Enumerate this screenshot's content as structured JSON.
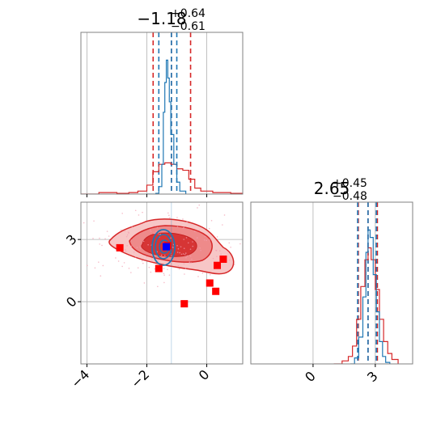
{
  "chart_data": [
    {
      "type": "line",
      "panel": "marginal-x",
      "title_main": "−1.18",
      "title_sup": "+0.64",
      "title_sub": "−0.61",
      "xlim": [
        -4.2,
        1.2
      ],
      "colors": {
        "narrow": "#1f77b4",
        "broad": "#d62728"
      },
      "quantiles_blue": [
        -1.6,
        -1.18,
        -1.0
      ],
      "quantiles_red": [
        -1.79,
        -1.18,
        -0.54
      ],
      "series": [
        {
          "values": [
            [
              -4.2,
              0
            ],
            [
              -3.6,
              0.01
            ],
            [
              -3.0,
              0.005
            ],
            [
              -2.6,
              0.01
            ],
            [
              -2.3,
              0.02
            ],
            [
              -2.0,
              0.06
            ],
            [
              -1.8,
              0.15
            ],
            [
              -1.6,
              0.2
            ],
            [
              -1.4,
              0.21
            ],
            [
              -1.2,
              0.2
            ],
            [
              -1.0,
              0.17
            ],
            [
              -0.8,
              0.16
            ],
            [
              -0.6,
              0.1
            ],
            [
              -0.4,
              0.04
            ],
            [
              -0.2,
              0.02
            ],
            [
              0.2,
              0.01
            ],
            [
              0.8,
              0.005
            ],
            [
              1.2,
              0
            ]
          ]
        },
        {
          "values": [
            [
              -2.0,
              0
            ],
            [
              -1.7,
              0.005
            ],
            [
              -1.6,
              0.05
            ],
            [
              -1.5,
              0.2
            ],
            [
              -1.45,
              0.55
            ],
            [
              -1.4,
              0.75
            ],
            [
              -1.35,
              0.9
            ],
            [
              -1.3,
              0.78
            ],
            [
              -1.25,
              0.62
            ],
            [
              -1.2,
              0.4
            ],
            [
              -1.1,
              0.2
            ],
            [
              -1.0,
              0.08
            ],
            [
              -0.9,
              0.02
            ],
            [
              -0.7,
              0
            ]
          ]
        }
      ]
    },
    {
      "type": "scatter",
      "panel": "joint",
      "xlim": [
        -4.2,
        1.2
      ],
      "ylim": [
        -3.0,
        4.8
      ],
      "xticks": [
        "−4",
        "−2",
        "0"
      ],
      "yticks": [
        "0",
        "3"
      ],
      "cross_x": -1.18,
      "cross_y": 2.65,
      "colors": {
        "narrow": "#1f77b4",
        "broad": "#d62728",
        "truth": "#0000ff",
        "points": "#ff0000"
      },
      "red_points": [
        [
          -2.9,
          2.6
        ],
        [
          -1.6,
          1.6
        ],
        [
          -1.3,
          2.7
        ],
        [
          -0.75,
          -0.1
        ],
        [
          0.1,
          0.9
        ],
        [
          0.3,
          0.5
        ],
        [
          0.35,
          1.75
        ],
        [
          0.55,
          2.05
        ]
      ],
      "blue_point": [
        -1.35,
        2.65
      ]
    },
    {
      "type": "line",
      "panel": "marginal-y",
      "title_main": "2.65",
      "title_sup": "+0.45",
      "title_sub": "−0.48",
      "xlim": [
        -3.0,
        4.8
      ],
      "xticks": [
        "0",
        "3"
      ],
      "quantiles_blue": [
        2.15,
        2.65,
        3.05
      ],
      "quantiles_red": [
        2.18,
        2.65,
        3.1
      ],
      "series": [
        {
          "values": [
            [
              1.0,
              0
            ],
            [
              1.4,
              0.02
            ],
            [
              1.7,
              0.05
            ],
            [
              1.9,
              0.12
            ],
            [
              2.1,
              0.3
            ],
            [
              2.3,
              0.52
            ],
            [
              2.5,
              0.7
            ],
            [
              2.65,
              0.78
            ],
            [
              2.8,
              0.7
            ],
            [
              3.0,
              0.5
            ],
            [
              3.2,
              0.3
            ],
            [
              3.4,
              0.15
            ],
            [
              3.6,
              0.07
            ],
            [
              3.8,
              0.03
            ],
            [
              4.1,
              0
            ]
          ]
        },
        {
          "values": [
            [
              1.8,
              0
            ],
            [
              2.0,
              0.04
            ],
            [
              2.2,
              0.18
            ],
            [
              2.4,
              0.45
            ],
            [
              2.55,
              0.75
            ],
            [
              2.65,
              0.9
            ],
            [
              2.75,
              0.85
            ],
            [
              2.9,
              0.6
            ],
            [
              3.05,
              0.35
            ],
            [
              3.2,
              0.15
            ],
            [
              3.35,
              0.05
            ],
            [
              3.5,
              0.01
            ],
            [
              3.7,
              0
            ]
          ]
        }
      ]
    }
  ]
}
